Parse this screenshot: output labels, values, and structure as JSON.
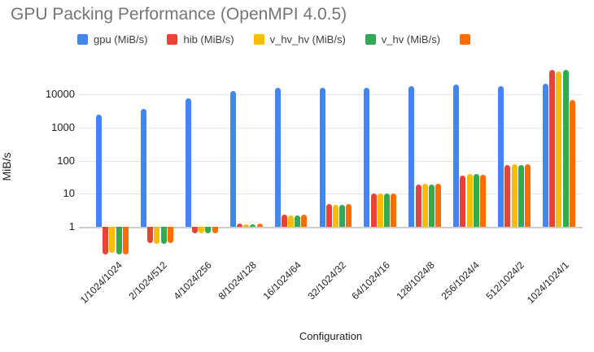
{
  "title": "GPU Packing Performance (OpenMPI 4.0.5)",
  "axes": {
    "y_title": "MiB/s",
    "x_title": "Configuration"
  },
  "legend": {
    "items": [
      {
        "label": "gpu (MiB/s)",
        "color": "#4285F4"
      },
      {
        "label": "hib (MiB/s)",
        "color": "#EA4335"
      },
      {
        "label": "v_hv_hv (MiB/s)",
        "color": "#FBBC04"
      },
      {
        "label": "v_hv (MiB/s)",
        "color": "#34A853"
      },
      {
        "label": "",
        "color": "#FF6D01"
      }
    ]
  },
  "chart_data": {
    "type": "bar",
    "title": "GPU Packing Performance (OpenMPI 4.0.5)",
    "xlabel": "Configuration",
    "ylabel": "MiB/s",
    "y_scale": "log",
    "y_ticks": [
      1,
      10,
      100,
      1000,
      10000
    ],
    "ylim": [
      0.1,
      100000
    ],
    "grid": true,
    "legend_position": "top",
    "categories": [
      "1/1024/1024",
      "2/1024/512",
      "4/1024/256",
      "8/1024/128",
      "16/1024/64",
      "32/1024/32",
      "64/1024/16",
      "128/1024/8",
      "256/1024/4",
      "512/1024/2",
      "1024/1024/1"
    ],
    "series": [
      {
        "name": "gpu (MiB/s)",
        "color": "#4285F4",
        "values": [
          2500,
          3700,
          7500,
          12700,
          16000,
          16200,
          16200,
          18000,
          19500,
          17500,
          21000
        ]
      },
      {
        "name": "hib (MiB/s)",
        "color": "#EA4335",
        "values": [
          0.15,
          0.32,
          0.65,
          1.25,
          2.4,
          4.8,
          10,
          19,
          36,
          72,
          55000
        ]
      },
      {
        "name": "v_hv_hv (MiB/s)",
        "color": "#FBBC04",
        "values": [
          0.16,
          0.3,
          0.65,
          1.2,
          2.2,
          4.6,
          10,
          20,
          40,
          79,
          50000
        ]
      },
      {
        "name": "v_hv (MiB/s)",
        "color": "#34A853",
        "values": [
          0.15,
          0.3,
          0.65,
          1.2,
          2.2,
          4.6,
          10,
          19,
          39,
          72,
          56000
        ]
      },
      {
        "name": "",
        "color": "#FF6D01",
        "values": [
          0.15,
          0.32,
          0.65,
          1.25,
          2.4,
          5,
          10,
          20,
          38,
          77,
          6800
        ]
      }
    ]
  }
}
